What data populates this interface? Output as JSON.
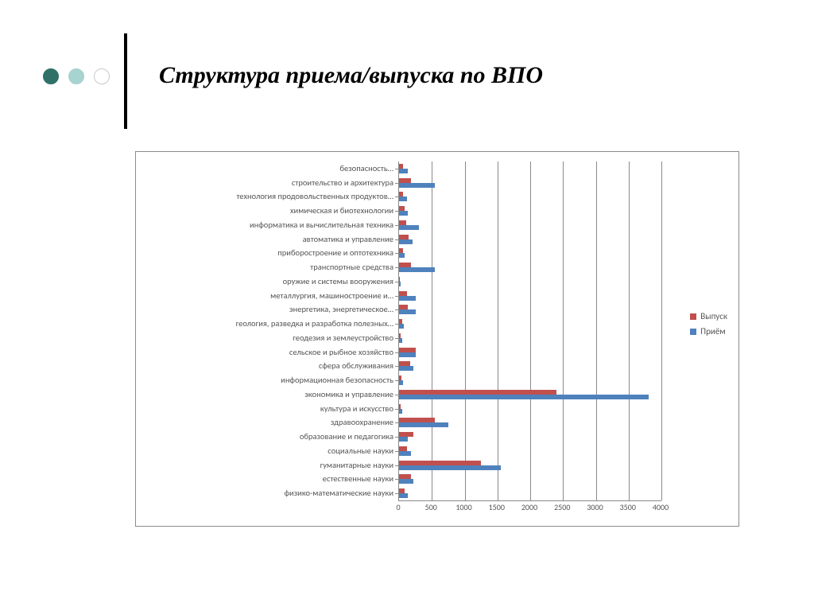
{
  "header": {
    "title": "Структура приема/выпуска по ВПО",
    "title_fontsize": 30,
    "title_italic": true,
    "title_bold": true,
    "vrule_color": "#000000",
    "dots": [
      {
        "fill": "#2f7168",
        "border": "#2f7168"
      },
      {
        "fill": "#a7d3d0",
        "border": "#a7d3d0"
      },
      {
        "fill": "#ffffff",
        "border": "#c9c9c9"
      }
    ]
  },
  "chart": {
    "type": "bar-horizontal-grouped",
    "background_color": "#ffffff",
    "border_color": "#8a8a8a",
    "grid_color": "#8a8a8a",
    "label_fontsize": 10.5,
    "tick_fontsize": 10,
    "series": [
      {
        "name": "Выпуск",
        "color": "#c0504d"
      },
      {
        "name": "Приём",
        "color": "#4f81bd"
      }
    ],
    "x_axis": {
      "min": 0,
      "max": 4000,
      "tick_step": 500,
      "ticks": [
        0,
        500,
        1000,
        1500,
        2000,
        2500,
        3000,
        3500,
        4000
      ]
    },
    "categories_order": "bottom_to_top",
    "categories": [
      {
        "label": "физико-математические науки",
        "vypusk": 80,
        "priem": 130
      },
      {
        "label": "естественные науки",
        "vypusk": 180,
        "priem": 220
      },
      {
        "label": "гуманитарные науки",
        "vypusk": 1250,
        "priem": 1550
      },
      {
        "label": "социальные науки",
        "vypusk": 120,
        "priem": 180
      },
      {
        "label": "образование и педагогика",
        "vypusk": 220,
        "priem": 130
      },
      {
        "label": "здравоохранение",
        "vypusk": 550,
        "priem": 750
      },
      {
        "label": "культура и искусство",
        "vypusk": 30,
        "priem": 50
      },
      {
        "label": "экономика и управление",
        "vypusk": 2400,
        "priem": 3800
      },
      {
        "label": "информационная безопасность",
        "vypusk": 40,
        "priem": 60
      },
      {
        "label": "сфера обслуживания",
        "vypusk": 170,
        "priem": 220
      },
      {
        "label": "сельское и рыбное хозяйство",
        "vypusk": 260,
        "priem": 260
      },
      {
        "label": "геодезия и землеустройство",
        "vypusk": 30,
        "priem": 50
      },
      {
        "label": "геология, разведка и разработка полезных…",
        "vypusk": 50,
        "priem": 70
      },
      {
        "label": "энергетика, энергетическое…",
        "vypusk": 130,
        "priem": 250
      },
      {
        "label": "металлургия, машиностроение  и…",
        "vypusk": 120,
        "priem": 250
      },
      {
        "label": "оружие и системы вооружения",
        "vypusk": 10,
        "priem": 25
      },
      {
        "label": "транспортные средства",
        "vypusk": 180,
        "priem": 550
      },
      {
        "label": "приборостроение и оптотехника",
        "vypusk": 60,
        "priem": 80
      },
      {
        "label": "автоматика и управление",
        "vypusk": 140,
        "priem": 200
      },
      {
        "label": "информатика и вычислительная техника",
        "vypusk": 110,
        "priem": 300
      },
      {
        "label": "химическая и биотехнологии",
        "vypusk": 80,
        "priem": 130
      },
      {
        "label": "технология продовольственных продуктов…",
        "vypusk": 60,
        "priem": 120
      },
      {
        "label": "строительство и архитектура",
        "vypusk": 180,
        "priem": 550
      },
      {
        "label": "безопасность…",
        "vypusk": 60,
        "priem": 130
      }
    ],
    "legend": {
      "position": "right",
      "items": [
        {
          "label": "Выпуск",
          "color": "#c0504d"
        },
        {
          "label": "Приём",
          "color": "#4f81bd"
        }
      ]
    }
  }
}
